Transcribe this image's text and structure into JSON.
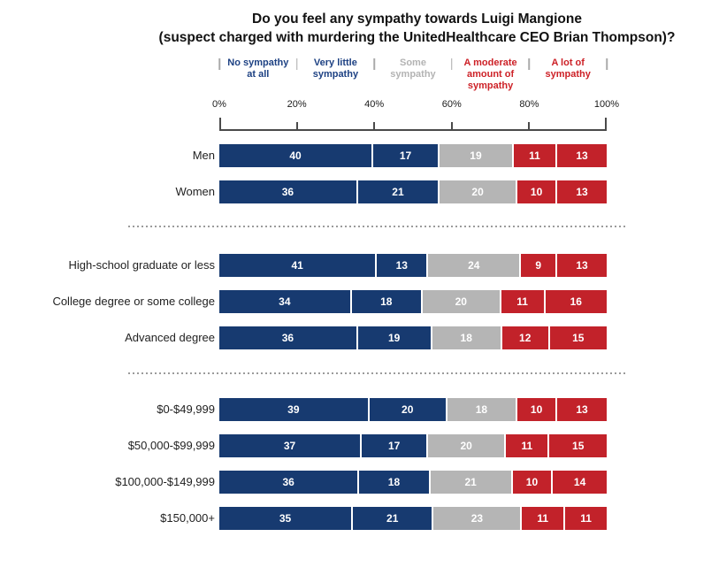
{
  "title": {
    "line1": "Do you feel any sympathy towards Luigi Mangione",
    "line2": "(suspect charged with murdering the UnitedHealthcare CEO Brian Thompson)?"
  },
  "chart_data": {
    "type": "bar",
    "orientation": "horizontal",
    "stacked": true,
    "title": "Do you feel any sympathy towards Luigi Mangione (suspect charged with murdering the UnitedHealthcare CEO Brian Thompson)?",
    "unit": "percent",
    "xlim": [
      0,
      100
    ],
    "x_tick_labels": [
      "0%",
      "20%",
      "40%",
      "60%",
      "80%",
      "100%"
    ],
    "legend_position": "top",
    "grid": false,
    "value_label_color": "#ffffff",
    "legend": [
      {
        "label": "No sympathy at all",
        "text_color": "#1d4183",
        "bar_color": "#173a70"
      },
      {
        "label": "Very little sympathy",
        "text_color": "#1d4183",
        "bar_color": "#173a70"
      },
      {
        "label": "Some sympathy",
        "text_color": "#b3b3b3",
        "bar_color": "#b5b5b5"
      },
      {
        "label": "A moderate amount of sympathy",
        "text_color": "#cd2127",
        "bar_color": "#c2222a"
      },
      {
        "label": "A lot of sympathy",
        "text_color": "#cd2127",
        "bar_color": "#c2222a"
      }
    ],
    "groups": [
      [
        {
          "category": "Men",
          "values": [
            40,
            17,
            19,
            11,
            13
          ]
        },
        {
          "category": "Women",
          "values": [
            36,
            21,
            20,
            10,
            13
          ]
        }
      ],
      [
        {
          "category": "High-school graduate or less",
          "values": [
            41,
            13,
            24,
            9,
            13
          ]
        },
        {
          "category": "College degree or some college",
          "values": [
            34,
            18,
            20,
            11,
            16
          ]
        },
        {
          "category": "Advanced degree",
          "values": [
            36,
            19,
            18,
            12,
            15
          ]
        }
      ],
      [
        {
          "category": "$0-$49,999",
          "values": [
            39,
            20,
            18,
            10,
            13
          ]
        },
        {
          "category": "$50,000-$99,999",
          "values": [
            37,
            17,
            20,
            11,
            15
          ]
        },
        {
          "category": "$100,000-$149,999",
          "values": [
            36,
            18,
            21,
            10,
            14
          ]
        },
        {
          "category": "$150,000+",
          "values": [
            35,
            21,
            23,
            11,
            11
          ]
        }
      ]
    ]
  }
}
